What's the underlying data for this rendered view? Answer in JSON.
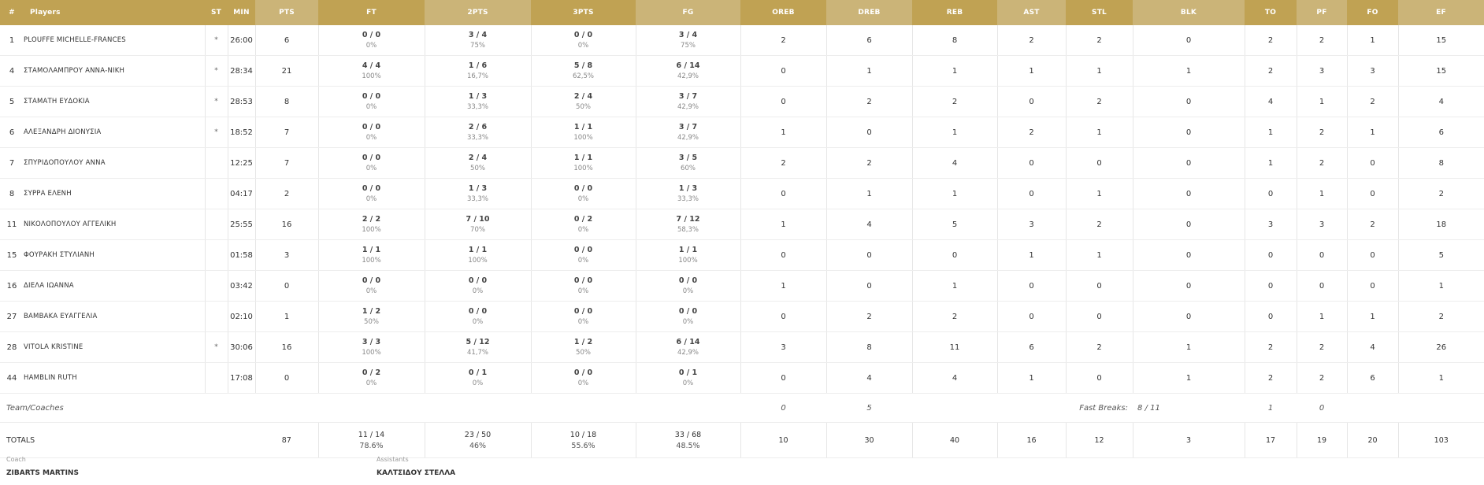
{
  "headers": {
    "num": "#",
    "player": "Players",
    "st": "ST",
    "min": "MIN",
    "pts": "PTS",
    "ft": "FT",
    "p2": "2PTS",
    "p3": "3PTS",
    "fg": "FG",
    "oreb": "OREB",
    "dreb": "DREB",
    "reb": "REB",
    "ast": "AST",
    "stl": "STL",
    "blk": "BLK",
    "to": "TO",
    "pf": "PF",
    "fo": "FO",
    "ef": "EF"
  },
  "players": [
    {
      "num": "1",
      "name": "PLOUFFE MICHELLE-FRANCES",
      "st": "*",
      "min": "26:00",
      "pts": "6",
      "ft": "0 / 0",
      "ft_pct": "0%",
      "p2": "3 / 4",
      "p2_pct": "75%",
      "p3": "0 / 0",
      "p3_pct": "0%",
      "fg": "3 / 4",
      "fg_pct": "75%",
      "oreb": "2",
      "dreb": "6",
      "reb": "8",
      "ast": "2",
      "stl": "2",
      "blk": "0",
      "to": "2",
      "pf": "2",
      "fo": "1",
      "ef": "15"
    },
    {
      "num": "4",
      "name": "ΣΤΑΜΟΛΑΜΠΡΟΥ ΑΝΝΑ-ΝΙΚΗ",
      "st": "*",
      "min": "28:34",
      "pts": "21",
      "ft": "4 / 4",
      "ft_pct": "100%",
      "p2": "1 / 6",
      "p2_pct": "16,7%",
      "p3": "5 / 8",
      "p3_pct": "62,5%",
      "fg": "6 / 14",
      "fg_pct": "42,9%",
      "oreb": "0",
      "dreb": "1",
      "reb": "1",
      "ast": "1",
      "stl": "1",
      "blk": "1",
      "to": "2",
      "pf": "3",
      "fo": "3",
      "ef": "15"
    },
    {
      "num": "5",
      "name": "ΣΤΑΜΑΤΗ ΕΥΔΟΚΙΑ",
      "st": "*",
      "min": "28:53",
      "pts": "8",
      "ft": "0 / 0",
      "ft_pct": "0%",
      "p2": "1 / 3",
      "p2_pct": "33,3%",
      "p3": "2 / 4",
      "p3_pct": "50%",
      "fg": "3 / 7",
      "fg_pct": "42,9%",
      "oreb": "0",
      "dreb": "2",
      "reb": "2",
      "ast": "0",
      "stl": "2",
      "blk": "0",
      "to": "4",
      "pf": "1",
      "fo": "2",
      "ef": "4"
    },
    {
      "num": "6",
      "name": "ΑΛΕΞΑΝΔΡΗ ΔΙΟΝΥΣΙΑ",
      "st": "*",
      "min": "18:52",
      "pts": "7",
      "ft": "0 / 0",
      "ft_pct": "0%",
      "p2": "2 / 6",
      "p2_pct": "33,3%",
      "p3": "1 / 1",
      "p3_pct": "100%",
      "fg": "3 / 7",
      "fg_pct": "42,9%",
      "oreb": "1",
      "dreb": "0",
      "reb": "1",
      "ast": "2",
      "stl": "1",
      "blk": "0",
      "to": "1",
      "pf": "2",
      "fo": "1",
      "ef": "6"
    },
    {
      "num": "7",
      "name": "ΣΠΥΡΙΔΟΠΟΥΛΟΥ ΑΝΝΑ",
      "st": "",
      "min": "12:25",
      "pts": "7",
      "ft": "0 / 0",
      "ft_pct": "0%",
      "p2": "2 / 4",
      "p2_pct": "50%",
      "p3": "1 / 1",
      "p3_pct": "100%",
      "fg": "3 / 5",
      "fg_pct": "60%",
      "oreb": "2",
      "dreb": "2",
      "reb": "4",
      "ast": "0",
      "stl": "0",
      "blk": "0",
      "to": "1",
      "pf": "2",
      "fo": "0",
      "ef": "8"
    },
    {
      "num": "8",
      "name": "ΣΥΡΡΑ ΕΛΕΝΗ",
      "st": "",
      "min": "04:17",
      "pts": "2",
      "ft": "0 / 0",
      "ft_pct": "0%",
      "p2": "1 / 3",
      "p2_pct": "33,3%",
      "p3": "0 / 0",
      "p3_pct": "0%",
      "fg": "1 / 3",
      "fg_pct": "33,3%",
      "oreb": "0",
      "dreb": "1",
      "reb": "1",
      "ast": "0",
      "stl": "1",
      "blk": "0",
      "to": "0",
      "pf": "1",
      "fo": "0",
      "ef": "2"
    },
    {
      "num": "11",
      "name": "ΝΙΚΟΛΟΠΟΥΛΟΥ ΑΓΓΕΛΙΚΗ",
      "st": "",
      "min": "25:55",
      "pts": "16",
      "ft": "2 / 2",
      "ft_pct": "100%",
      "p2": "7 / 10",
      "p2_pct": "70%",
      "p3": "0 / 2",
      "p3_pct": "0%",
      "fg": "7 / 12",
      "fg_pct": "58,3%",
      "oreb": "1",
      "dreb": "4",
      "reb": "5",
      "ast": "3",
      "stl": "2",
      "blk": "0",
      "to": "3",
      "pf": "3",
      "fo": "2",
      "ef": "18"
    },
    {
      "num": "15",
      "name": "ΦΟΥΡΑΚΗ ΣΤΥΛΙΑΝΗ",
      "st": "",
      "min": "01:58",
      "pts": "3",
      "ft": "1 / 1",
      "ft_pct": "100%",
      "p2": "1 / 1",
      "p2_pct": "100%",
      "p3": "0 / 0",
      "p3_pct": "0%",
      "fg": "1 / 1",
      "fg_pct": "100%",
      "oreb": "0",
      "dreb": "0",
      "reb": "0",
      "ast": "1",
      "stl": "1",
      "blk": "0",
      "to": "0",
      "pf": "0",
      "fo": "0",
      "ef": "5"
    },
    {
      "num": "16",
      "name": "ΔΙΕΛΑ ΙΩΑΝΝΑ",
      "st": "",
      "min": "03:42",
      "pts": "0",
      "ft": "0 / 0",
      "ft_pct": "0%",
      "p2": "0 / 0",
      "p2_pct": "0%",
      "p3": "0 / 0",
      "p3_pct": "0%",
      "fg": "0 / 0",
      "fg_pct": "0%",
      "oreb": "1",
      "dreb": "0",
      "reb": "1",
      "ast": "0",
      "stl": "0",
      "blk": "0",
      "to": "0",
      "pf": "0",
      "fo": "0",
      "ef": "1"
    },
    {
      "num": "27",
      "name": "ΒΑΜΒΑΚΑ ΕΥΑΓΓΕΛΙΑ",
      "st": "",
      "min": "02:10",
      "pts": "1",
      "ft": "1 / 2",
      "ft_pct": "50%",
      "p2": "0 / 0",
      "p2_pct": "0%",
      "p3": "0 / 0",
      "p3_pct": "0%",
      "fg": "0 / 0",
      "fg_pct": "0%",
      "oreb": "0",
      "dreb": "2",
      "reb": "2",
      "ast": "0",
      "stl": "0",
      "blk": "0",
      "to": "0",
      "pf": "1",
      "fo": "1",
      "ef": "2"
    },
    {
      "num": "28",
      "name": "VITOLA KRISTINE",
      "st": "*",
      "min": "30:06",
      "pts": "16",
      "ft": "3 / 3",
      "ft_pct": "100%",
      "p2": "5 / 12",
      "p2_pct": "41,7%",
      "p3": "1 / 2",
      "p3_pct": "50%",
      "fg": "6 / 14",
      "fg_pct": "42,9%",
      "oreb": "3",
      "dreb": "8",
      "reb": "11",
      "ast": "6",
      "stl": "2",
      "blk": "1",
      "to": "2",
      "pf": "2",
      "fo": "4",
      "ef": "26"
    },
    {
      "num": "44",
      "name": "HAMBLIN RUTH",
      "st": "",
      "min": "17:08",
      "pts": "0",
      "ft": "0 / 2",
      "ft_pct": "0%",
      "p2": "0 / 1",
      "p2_pct": "0%",
      "p3": "0 / 0",
      "p3_pct": "0%",
      "fg": "0 / 1",
      "fg_pct": "0%",
      "oreb": "0",
      "dreb": "4",
      "reb": "4",
      "ast": "1",
      "stl": "0",
      "blk": "1",
      "to": "2",
      "pf": "2",
      "fo": "6",
      "ef": "1"
    }
  ],
  "team": {
    "label": "Team/Coaches",
    "oreb": "0",
    "dreb": "5",
    "fast_breaks_label": "Fast Breaks:",
    "fast_breaks": "8 / 11",
    "to": "1",
    "pf": "0"
  },
  "totals": {
    "label": "TOTALS",
    "pts": "87",
    "ft": "11 / 14",
    "ft_pct": "78.6%",
    "p2": "23 / 50",
    "p2_pct": "46%",
    "p3": "10 / 18",
    "p3_pct": "55.6%",
    "fg": "33 / 68",
    "fg_pct": "48.5%",
    "oreb": "10",
    "dreb": "30",
    "reb": "40",
    "ast": "16",
    "stl": "12",
    "blk": "3",
    "to": "17",
    "pf": "19",
    "fo": "20",
    "ef": "103"
  },
  "coaches": {
    "coach_label": "Coach",
    "coach_name": "ZIBARTS MARTINS",
    "assistants_label": "Assistants",
    "assistants_name": "ΚΑΛΤΣΙΔΟΥ ΣΤΕΛΛΑ"
  },
  "colors": {
    "header_dark": "#c0a253",
    "header_light": "#cbb478"
  }
}
